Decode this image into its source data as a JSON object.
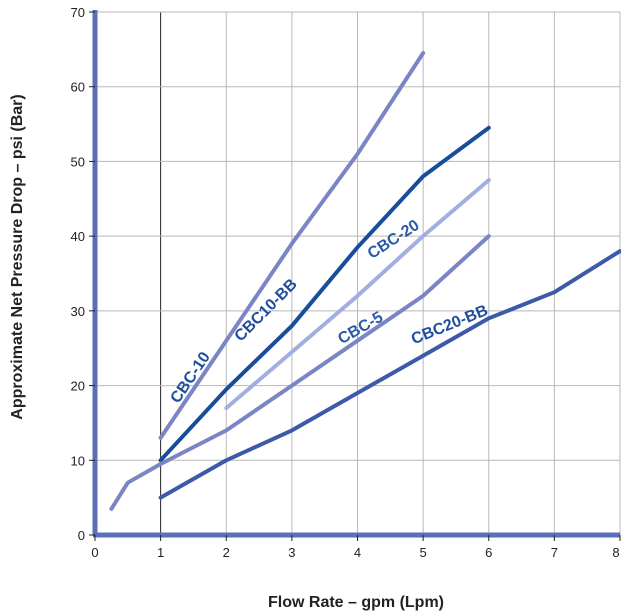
{
  "chart_data": {
    "type": "line",
    "xlabel": "Flow Rate – gpm (Lpm)",
    "ylabel": "Approximate Net Pressure Drop – psi (Bar)",
    "xlim": [
      0,
      8
    ],
    "ylim": [
      0,
      70
    ],
    "x_ticks": [
      "0",
      "1",
      "2",
      "3",
      "4",
      "5",
      "6",
      "7",
      "8"
    ],
    "y_ticks": [
      "0",
      "10",
      "20",
      "30",
      "40",
      "50",
      "60",
      "70"
    ],
    "grid": true,
    "series": [
      {
        "name": "CBC-10",
        "color": "#7b84c4",
        "points": [
          [
            1,
            13
          ],
          [
            3,
            39
          ],
          [
            4,
            51
          ],
          [
            5,
            64.5
          ]
        ]
      },
      {
        "name": "CBC10-BB",
        "color": "#184d9c",
        "points": [
          [
            1,
            10
          ],
          [
            2,
            19.5
          ],
          [
            3,
            28
          ],
          [
            4,
            38.5
          ],
          [
            5,
            48
          ],
          [
            6,
            54.5
          ]
        ]
      },
      {
        "name": "CBC-20",
        "color": "#a3aee0",
        "points": [
          [
            2,
            17
          ],
          [
            3,
            24.5
          ],
          [
            4,
            32
          ],
          [
            5,
            40
          ],
          [
            6,
            47.5
          ]
        ]
      },
      {
        "name": "CBC-5",
        "color": "#7b84c4",
        "points": [
          [
            0.25,
            3.5
          ],
          [
            0.5,
            7
          ],
          [
            1,
            9.5
          ],
          [
            2,
            14
          ],
          [
            3,
            20
          ],
          [
            4,
            26
          ],
          [
            5,
            32
          ],
          [
            6,
            40
          ]
        ]
      },
      {
        "name": "CBC20-BB",
        "color": "#3d5aa8",
        "points": [
          [
            1,
            5
          ],
          [
            2,
            10
          ],
          [
            3,
            14
          ],
          [
            4,
            19
          ],
          [
            5,
            24
          ],
          [
            6,
            29
          ],
          [
            7,
            32.5
          ],
          [
            8,
            38
          ]
        ]
      }
    ],
    "annotations": [
      {
        "text": "CBC-10",
        "series": 0
      },
      {
        "text": "CBC10-BB",
        "series": 1
      },
      {
        "text": "CBC-20",
        "series": 2
      },
      {
        "text": "CBC-5",
        "series": 3
      },
      {
        "text": "CBC20-BB",
        "series": 4
      }
    ]
  }
}
